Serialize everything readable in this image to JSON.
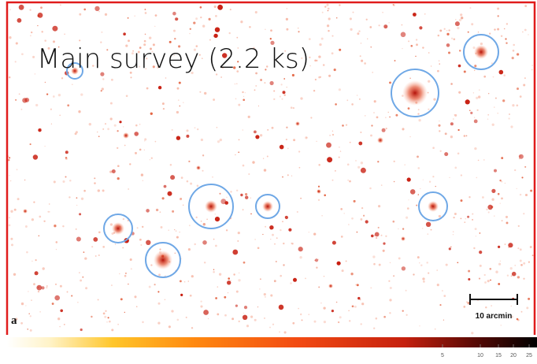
{
  "panel": {
    "title": "Main survey (2.2 ks)",
    "label": "a",
    "scale_bar": "10 arcmin"
  },
  "colorbar": {
    "ticks": [
      "5",
      "10",
      "15",
      "20",
      "25"
    ]
  }
}
